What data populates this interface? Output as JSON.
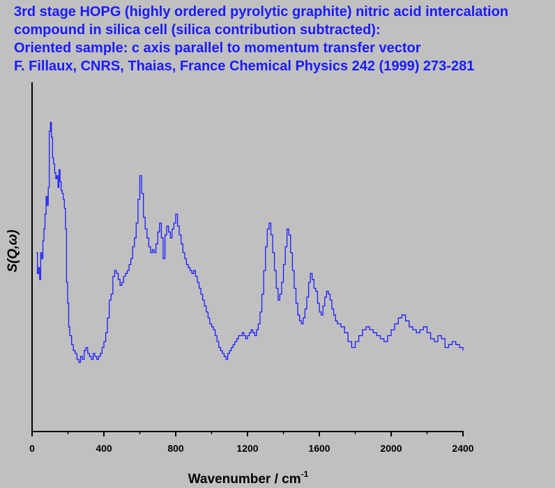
{
  "header": {
    "title_lines": [
      "3rd stage HOPG (highly ordered pyrolytic graphite) nitric acid intercalation",
      "compound in silica cell (silica contribution subtracted):",
      "Oriented sample: c axis parallel to momentum transfer vector",
      "F. Fillaux, CNRS, Thaias, France Chemical Physics 242 (1999) 273-281"
    ]
  },
  "colors": {
    "background": "#c0c0c0",
    "title": "#1a1aff",
    "series": "#1a1aff",
    "axis": "#000000"
  },
  "chart_data": {
    "type": "line",
    "style": "step",
    "xlabel_main": "Wavenumber / cm",
    "xlabel_sup": "-1",
    "ylabel": "S(Q,ω)",
    "xlim": [
      0,
      2400
    ],
    "ylim": [
      0,
      100
    ],
    "x_ticks": [
      0,
      400,
      800,
      1200,
      1600,
      2000,
      2400
    ],
    "y_ticks_labeled": false,
    "grid": false,
    "series": [
      {
        "x": [
          24,
          30,
          36,
          42,
          48,
          54,
          60,
          66,
          72,
          78,
          84,
          90,
          96,
          102,
          108,
          114,
          120,
          126,
          132,
          138,
          144,
          150,
          156,
          162,
          168,
          174,
          180,
          186,
          192,
          198,
          204,
          210,
          220,
          230,
          240,
          250,
          260,
          270,
          280,
          290,
          300,
          310,
          320,
          330,
          340,
          350,
          360,
          370,
          380,
          390,
          400,
          410,
          420,
          430,
          440,
          450,
          460,
          470,
          480,
          490,
          500,
          510,
          520,
          530,
          540,
          550,
          560,
          570,
          580,
          590,
          600,
          610,
          620,
          630,
          640,
          650,
          660,
          670,
          680,
          690,
          700,
          710,
          720,
          730,
          740,
          750,
          760,
          770,
          780,
          790,
          800,
          810,
          820,
          830,
          840,
          850,
          860,
          870,
          880,
          890,
          900,
          910,
          920,
          930,
          940,
          950,
          960,
          970,
          980,
          990,
          1000,
          1010,
          1020,
          1030,
          1040,
          1050,
          1060,
          1070,
          1080,
          1090,
          1100,
          1110,
          1120,
          1130,
          1140,
          1150,
          1160,
          1170,
          1180,
          1190,
          1200,
          1210,
          1220,
          1230,
          1240,
          1250,
          1260,
          1270,
          1280,
          1290,
          1300,
          1310,
          1320,
          1330,
          1340,
          1350,
          1360,
          1370,
          1380,
          1390,
          1400,
          1410,
          1420,
          1430,
          1440,
          1450,
          1460,
          1470,
          1480,
          1490,
          1500,
          1510,
          1520,
          1530,
          1540,
          1550,
          1560,
          1570,
          1580,
          1590,
          1600,
          1610,
          1620,
          1630,
          1640,
          1650,
          1660,
          1670,
          1680,
          1690,
          1700,
          1720,
          1740,
          1760,
          1780,
          1800,
          1820,
          1840,
          1860,
          1880,
          1900,
          1920,
          1940,
          1960,
          1980,
          2000,
          2020,
          2040,
          2060,
          2080,
          2100,
          2120,
          2140,
          2160,
          2180,
          2200,
          2220,
          2240,
          2260,
          2280,
          2300,
          2320,
          2340,
          2360,
          2380,
          2400
        ],
        "values": [
          50,
          43,
          45,
          41,
          50,
          48,
          54,
          58,
          63,
          69,
          66,
          72,
          91,
          94,
          89,
          82,
          80,
          77,
          75,
          76,
          72,
          78,
          74,
          71,
          70,
          68,
          65,
          58,
          40,
          33,
          25,
          22,
          19,
          17,
          16,
          14,
          13,
          15,
          14,
          17,
          18,
          16,
          15,
          14,
          16,
          15,
          14,
          15,
          16,
          18,
          20,
          23,
          28,
          34,
          36,
          42,
          44,
          43,
          41,
          39,
          40,
          42,
          43,
          44,
          46,
          48,
          52,
          55,
          60,
          68,
          76,
          70,
          62,
          58,
          55,
          52,
          50,
          51,
          50,
          53,
          57,
          60,
          55,
          48,
          56,
          59,
          57,
          55,
          58,
          60,
          63,
          59,
          56,
          53,
          50,
          48,
          46,
          45,
          44,
          43,
          44,
          42,
          40,
          38,
          36,
          34,
          32,
          30,
          28,
          26,
          25,
          24,
          22,
          20,
          18,
          17,
          16,
          15,
          14,
          16,
          17,
          18,
          19,
          20,
          21,
          22,
          22,
          23,
          22,
          21,
          22,
          23,
          24,
          23,
          22,
          24,
          26,
          30,
          36,
          44,
          52,
          58,
          60,
          56,
          50,
          44,
          38,
          34,
          36,
          40,
          46,
          52,
          58,
          56,
          50,
          44,
          38,
          33,
          29,
          27,
          26,
          28,
          31,
          35,
          40,
          43,
          41,
          38,
          37,
          33,
          30,
          29,
          32,
          35,
          37,
          36,
          34,
          31,
          29,
          27,
          26,
          25,
          23,
          20,
          18,
          20,
          22,
          24,
          25,
          24,
          23,
          22,
          21,
          20,
          22,
          24,
          26,
          28,
          29,
          27,
          25,
          24,
          23,
          24,
          25,
          23,
          21,
          20,
          22,
          21,
          18,
          19,
          20,
          19,
          18,
          17
        ]
      }
    ]
  }
}
